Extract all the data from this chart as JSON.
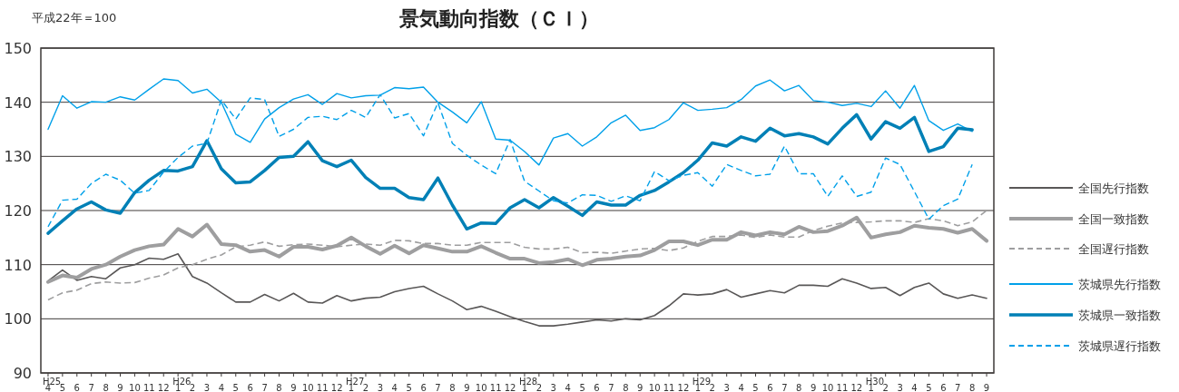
{
  "chart_data": {
    "type": "line",
    "title": "景気動向指数（ＣＩ）",
    "subtitle": "平成22年＝100",
    "categories": [
      "H25\n4",
      "5",
      "6",
      "7",
      "8",
      "9",
      "10",
      "11",
      "12",
      "H26\n1",
      "2",
      "3",
      "4",
      "5",
      "6",
      "7",
      "8",
      "9",
      "10",
      "11",
      "12",
      "H27\n1",
      "2",
      "3",
      "4",
      "5",
      "6",
      "7",
      "8",
      "9",
      "10",
      "11",
      "12",
      "H28\n1",
      "2",
      "3",
      "4",
      "5",
      "6",
      "7",
      "8",
      "9",
      "10",
      "11",
      "12",
      "H29\n1",
      "2",
      "3",
      "4",
      "5",
      "6",
      "7",
      "8",
      "9",
      "10",
      "11",
      "12",
      "H30\n1",
      "2",
      "3",
      "4",
      "5",
      "6",
      "7",
      "8",
      "9"
    ],
    "ylim": [
      90,
      150
    ],
    "yticks": [
      90,
      100,
      110,
      120,
      130,
      140,
      150
    ],
    "grid": "y",
    "legend": "right",
    "series": [
      {
        "name": "全国先行指数",
        "color": "#595757",
        "line_style": "solid",
        "values": [
          107,
          109,
          107.1,
          107.8,
          107.4,
          109.4,
          110,
          111.2,
          111,
          112,
          107.8,
          106.6,
          104.8,
          103.1,
          103.1,
          104.5,
          103.3,
          104.7,
          103.1,
          102.9,
          104.3,
          103.3,
          103.8,
          104,
          105,
          105.6,
          106,
          104.6,
          103.3,
          101.7,
          102.3,
          101.4,
          100.4,
          99.5,
          98.7,
          98.7,
          99,
          99.4,
          99.8,
          99.6,
          100,
          99.8,
          100.6,
          102.4,
          104.6,
          104.4,
          104.6,
          105.4,
          104,
          104.6,
          105.2,
          104.8,
          106.2,
          106.2,
          106,
          107.4,
          106.6,
          105.6,
          105.8,
          104.3,
          105.8,
          106.6,
          104.6,
          103.8,
          104.4,
          103.8
        ]
      },
      {
        "name": "全国一致指数",
        "color": "#9e9e9f",
        "line_style": "solid",
        "values": [
          106.8,
          108,
          107.6,
          109.2,
          110,
          111.5,
          112.7,
          113.4,
          113.7,
          116.6,
          115.2,
          117.4,
          113.8,
          113.6,
          112.4,
          112.7,
          111.5,
          113.3,
          113.3,
          112.8,
          113.5,
          115,
          113.4,
          112,
          113.5,
          112.1,
          113.6,
          113,
          112.4,
          112.4,
          113.4,
          112.2,
          111.1,
          111.1,
          110.3,
          110.5,
          111,
          109.9,
          110.9,
          111.1,
          111.5,
          111.7,
          112.7,
          114.3,
          114.3,
          113.6,
          114.6,
          114.6,
          116,
          115.4,
          116,
          115.6,
          117,
          116,
          116.2,
          117.2,
          118.7,
          115,
          115.6,
          116,
          117.2,
          116.8,
          116.6,
          115.9,
          116.6,
          114.4
        ]
      },
      {
        "name": "全国遅行指数",
        "color": "#9e9e9f",
        "line_style": "dashed",
        "values": [
          103.5,
          104.8,
          105.3,
          106.5,
          106.8,
          106.6,
          106.7,
          107.5,
          108.1,
          109.4,
          110,
          111,
          111.8,
          113.3,
          113.6,
          114.2,
          113.4,
          113.7,
          113.8,
          113.6,
          113.3,
          113.6,
          113.8,
          113.6,
          114.5,
          114.4,
          113.9,
          113.9,
          113.6,
          113.6,
          114.1,
          114.1,
          114.1,
          113.2,
          112.9,
          112.9,
          113.2,
          112.2,
          112.3,
          112.1,
          112.5,
          112.9,
          113,
          112.6,
          113.1,
          114.3,
          115.2,
          115.2,
          115.5,
          115,
          115.5,
          115.1,
          115.1,
          116.3,
          117.1,
          117.7,
          117.8,
          117.9,
          118.1,
          118.1,
          117.8,
          118.5,
          118.1,
          117.2,
          117.9,
          120
        ]
      },
      {
        "name": "茨城県先行指数",
        "color": "#00a0e9",
        "line_style": "solid",
        "values": [
          135,
          141.2,
          138.9,
          140.1,
          140,
          141,
          140.4,
          142.4,
          144.3,
          144,
          141.7,
          142.4,
          140,
          134.1,
          132.6,
          136.9,
          139,
          140.6,
          141.4,
          139.6,
          141.6,
          140.8,
          141.2,
          141.3,
          142.7,
          142.5,
          142.8,
          140,
          138.2,
          136.2,
          140.1,
          133.2,
          133,
          130.9,
          128.4,
          133.4,
          134.2,
          131.9,
          133.6,
          136.2,
          137.6,
          134.8,
          135.3,
          136.8,
          139.9,
          138.5,
          138.7,
          139,
          140.5,
          143,
          144.1,
          142.1,
          143.1,
          140.3,
          140,
          139.4,
          139.8,
          139.2,
          142.1,
          138.9,
          143.1,
          136.6,
          134.8,
          136,
          134.6,
          null
        ]
      },
      {
        "name": "茨城県一致指数",
        "color": "#0080b6",
        "line_style": "solid",
        "values": [
          115.8,
          118.1,
          120.3,
          121.6,
          120.1,
          119.5,
          123.3,
          125.6,
          127.4,
          127.3,
          128.1,
          132.9,
          127.7,
          125.1,
          125.3,
          127.4,
          129.8,
          130,
          132.7,
          129.2,
          128.1,
          129.3,
          126.1,
          124.1,
          124.1,
          122.4,
          122,
          126,
          121,
          116.6,
          117.7,
          117.6,
          120.5,
          122,
          120.5,
          122.4,
          120.8,
          119.1,
          121.6,
          121,
          121,
          122.8,
          123.7,
          125.3,
          127,
          129.3,
          132.5,
          131.9,
          133.6,
          132.8,
          135.2,
          133.8,
          134.2,
          133.6,
          132.3,
          135.2,
          137.7,
          133.2,
          136.4,
          135.2,
          137.2,
          130.9,
          131.8,
          135.2,
          134.9,
          null
        ]
      },
      {
        "name": "茨城県遅行指数",
        "color": "#00a0e9",
        "line_style": "dashed",
        "values": [
          117,
          121.9,
          122.1,
          125,
          126.7,
          125.6,
          123.2,
          123.7,
          127.1,
          129.8,
          131.9,
          132.4,
          140.4,
          136.9,
          140.8,
          140.5,
          133.7,
          135,
          137.2,
          137.4,
          136.8,
          138.5,
          137.2,
          141.4,
          137.1,
          137.9,
          133.8,
          139.9,
          132.4,
          130.2,
          128.4,
          126.8,
          133.1,
          125.4,
          123.6,
          121.8,
          121.4,
          122.9,
          122.8,
          121.7,
          122.7,
          121.8,
          127.2,
          125.5,
          126.5,
          127,
          124.5,
          128.5,
          127.4,
          126.4,
          126.7,
          131.9,
          126.8,
          126.8,
          122.6,
          126.4,
          122.6,
          123.4,
          129.7,
          128.5,
          123.5,
          118.4,
          120.9,
          122.1,
          128.5,
          null
        ]
      }
    ]
  }
}
